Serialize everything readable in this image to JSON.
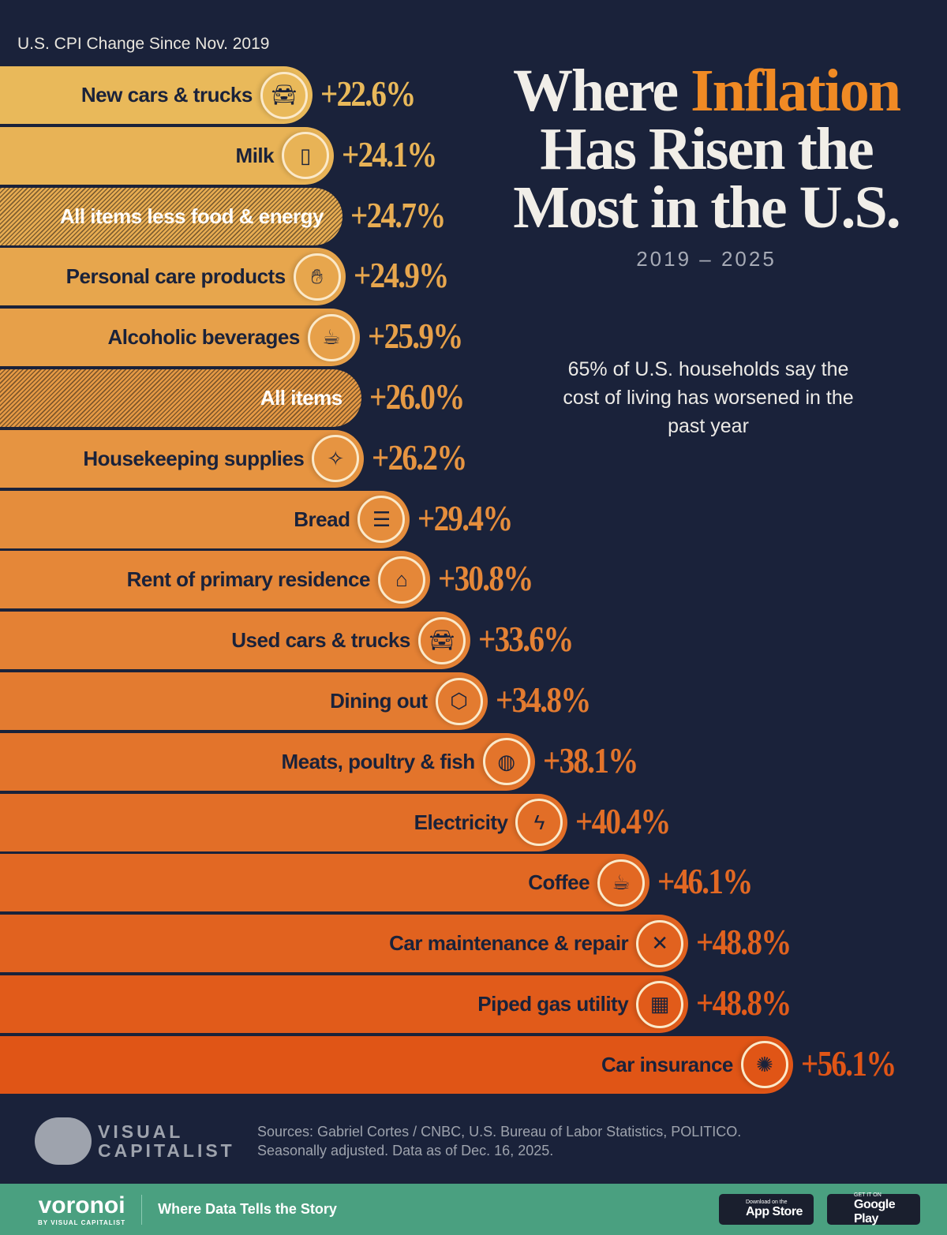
{
  "header": {
    "subtitle": "U.S. CPI Change Since Nov. 2019",
    "title_part1": "Where ",
    "title_highlight": "Inflation",
    "title_part2": "Has Risen the Most in the U.S.",
    "years": "2019 – 2025",
    "note": "65% of U.S. households say the cost of living has worsened in the past year"
  },
  "chart_data": {
    "type": "bar",
    "orientation": "horizontal",
    "title": "Where Inflation Has Risen the Most in the U.S.",
    "subtitle": "U.S. CPI Change Since Nov. 2019",
    "unit": "%",
    "categories": [
      "New cars & trucks",
      "Milk",
      "All items less food & energy",
      "Personal care products",
      "Alcoholic beverages",
      "All items",
      "Housekeeping supplies",
      "Bread",
      "Rent of primary residence",
      "Used cars & trucks",
      "Dining out",
      "Meats, poultry & fish",
      "Electricity",
      "Coffee",
      "Car maintenance & repair",
      "Piped gas utility",
      "Car insurance"
    ],
    "values": [
      22.6,
      24.1,
      24.7,
      24.9,
      25.9,
      26.0,
      26.2,
      29.4,
      30.8,
      33.6,
      34.8,
      38.1,
      40.4,
      46.1,
      48.8,
      48.8,
      56.1
    ],
    "value_labels": [
      "+22.6%",
      "+24.1%",
      "+24.7%",
      "+24.9%",
      "+25.9%",
      "+26.0%",
      "+26.2%",
      "+29.4%",
      "+30.8%",
      "+33.6%",
      "+34.8%",
      "+38.1%",
      "+40.4%",
      "+46.1%",
      "+48.8%",
      "+48.8%",
      "+56.1%"
    ],
    "hatched": [
      "All items less food & energy",
      "All items"
    ],
    "icons": [
      "car-icon",
      "milk-carton-icon",
      null,
      "hand-soap-icon",
      "beer-mug-icon",
      null,
      "broom-icon",
      "sandwich-icon",
      "house-icon",
      "car-icon",
      "takeout-box-icon",
      "steak-icon",
      "lightning-icon",
      "coffee-cup-icon",
      "tools-icon",
      "stove-icon",
      "car-crash-icon"
    ],
    "color_scale": [
      "#e9b95a",
      "#e05516"
    ]
  },
  "footer": {
    "logo": "VISUAL CAPITALIST",
    "sources": "Sources: Gabriel Cortes / CNBC, U.S. Bureau of Labor Statistics, POLITICO.",
    "sources2": "Seasonally adjusted. Data as of Dec. 16, 2025.",
    "brand": "voronoi",
    "brand_by": "BY VISUAL CAPITALIST",
    "tagline": "Where Data Tells the Story",
    "appstore_small": "Download on the",
    "appstore": "App Store",
    "googleplay_small": "GET IT ON",
    "googleplay": "Google Play",
    "band_color": "#4aa080"
  }
}
